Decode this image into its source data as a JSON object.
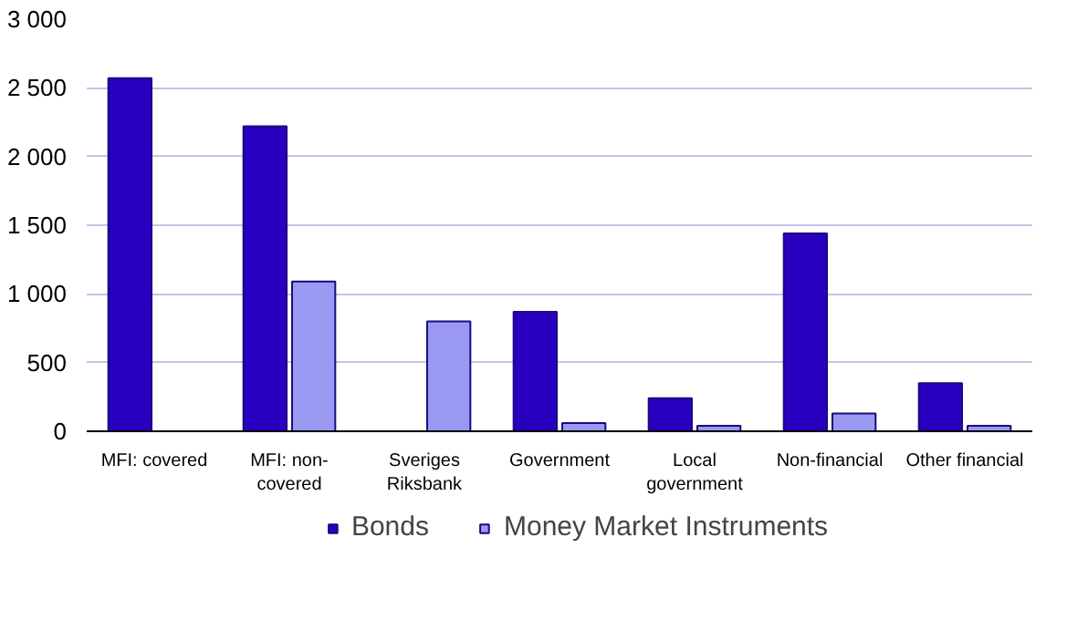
{
  "chart_data": {
    "type": "bar",
    "categories": [
      "MFI: covered",
      "MFI: non-covered",
      "Sveriges Riksbank",
      "Government",
      "Local government",
      "Non-financial",
      "Other financial"
    ],
    "series": [
      {
        "name": "Bonds",
        "color": "#2a00c0",
        "values": [
          2570,
          2220,
          null,
          870,
          240,
          1440,
          350
        ]
      },
      {
        "name": "Money Market Instruments",
        "color": "#9999f2",
        "values": [
          null,
          1090,
          800,
          60,
          40,
          130,
          40
        ]
      }
    ],
    "ylim": [
      0,
      3000
    ],
    "yticks": [
      {
        "value": 0,
        "label": "0"
      },
      {
        "value": 500,
        "label": "500"
      },
      {
        "value": 1000,
        "label": "1 000"
      },
      {
        "value": 1500,
        "label": "1 500"
      },
      {
        "value": 2000,
        "label": "2 000"
      },
      {
        "value": 2500,
        "label": "2 500"
      },
      {
        "value": 3000,
        "label": "3 000"
      }
    ],
    "grid": "y",
    "legend": "bottom"
  }
}
